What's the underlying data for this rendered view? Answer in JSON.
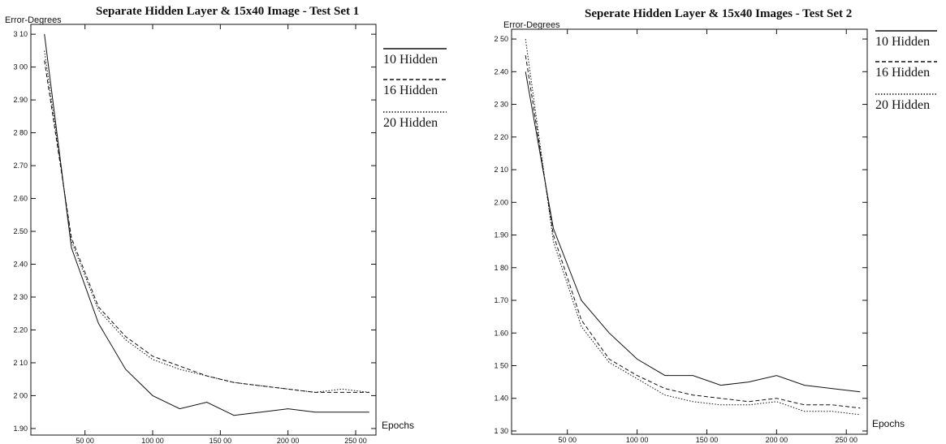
{
  "chart_data": [
    {
      "type": "line",
      "title": "Separate Hidden Layer & 15x40 Image - Test Set 1",
      "ylabel": "Error-Degrees",
      "xlabel": "Epochs",
      "xlim": [
        10,
        265
      ],
      "ylim": [
        1.88,
        3.13
      ],
      "xticks": [
        50,
        100,
        150,
        200,
        250
      ],
      "xtick_labels": [
        "50 00",
        "100 00",
        "150 00",
        "200 00",
        "250 00"
      ],
      "yticks": [
        1.9,
        2.0,
        2.1,
        2.2,
        2.3,
        2.4,
        2.5,
        2.6,
        2.7,
        2.8,
        2.9,
        3.0,
        3.1
      ],
      "ytick_labels": [
        "1.90",
        "2 00",
        "2 10",
        "2.20",
        "2 30",
        "2.40",
        "2.50",
        "2.60",
        "2.70",
        "2 80",
        "2.90",
        "3 00",
        "3 10"
      ],
      "legend_position": "right",
      "series": [
        {
          "name": "10 Hidden",
          "dash": "solid",
          "x": [
            20,
            40,
            60,
            80,
            100,
            120,
            140,
            160,
            180,
            200,
            220,
            240,
            260
          ],
          "y": [
            3.1,
            2.45,
            2.22,
            2.08,
            2.0,
            1.96,
            1.98,
            1.94,
            1.95,
            1.96,
            1.95,
            1.95,
            1.95
          ]
        },
        {
          "name": "16 Hidden",
          "dash": "dashed",
          "x": [
            20,
            40,
            60,
            80,
            100,
            120,
            140,
            160,
            180,
            200,
            220,
            240,
            260
          ],
          "y": [
            3.02,
            2.48,
            2.27,
            2.18,
            2.12,
            2.09,
            2.06,
            2.04,
            2.03,
            2.02,
            2.01,
            2.01,
            2.01
          ]
        },
        {
          "name": "20 Hidden",
          "dash": "dotted",
          "x": [
            20,
            40,
            60,
            80,
            100,
            120,
            140,
            160,
            180,
            200,
            220,
            240,
            260
          ],
          "y": [
            3.05,
            2.47,
            2.26,
            2.17,
            2.11,
            2.08,
            2.06,
            2.04,
            2.03,
            2.02,
            2.01,
            2.02,
            2.01
          ]
        }
      ]
    },
    {
      "type": "line",
      "title": "Seperate Hidden Layer & 15x40 Images - Test Set 2",
      "ylabel": "Error-Degrees",
      "xlabel": "Epochs",
      "xlim": [
        10,
        265
      ],
      "ylim": [
        1.29,
        2.53
      ],
      "xticks": [
        50,
        100,
        150,
        200,
        250
      ],
      "xtick_labels": [
        "50 00",
        "100 00",
        "150 00",
        "200 00",
        "250 00"
      ],
      "yticks": [
        1.3,
        1.4,
        1.5,
        1.6,
        1.7,
        1.8,
        1.9,
        2.0,
        2.1,
        2.2,
        2.3,
        2.4,
        2.5
      ],
      "ytick_labels": [
        "1 30",
        "1.40",
        "1 50",
        "1.60",
        "1.70",
        "1 80",
        "1.90",
        "2.00",
        "2 10",
        "2 20",
        "2 30",
        "2.40",
        "2 50"
      ],
      "legend_position": "right",
      "series": [
        {
          "name": "10 Hidden",
          "dash": "solid",
          "x": [
            20,
            40,
            60,
            80,
            100,
            120,
            140,
            160,
            180,
            200,
            220,
            240,
            260
          ],
          "y": [
            2.4,
            1.92,
            1.7,
            1.6,
            1.52,
            1.47,
            1.47,
            1.44,
            1.45,
            1.47,
            1.44,
            1.43,
            1.42
          ]
        },
        {
          "name": "16 Hidden",
          "dash": "dashed",
          "x": [
            20,
            40,
            60,
            80,
            100,
            120,
            140,
            160,
            180,
            200,
            220,
            240,
            260
          ],
          "y": [
            2.45,
            1.9,
            1.64,
            1.52,
            1.47,
            1.43,
            1.41,
            1.4,
            1.39,
            1.4,
            1.38,
            1.38,
            1.37
          ]
        },
        {
          "name": "20 Hidden",
          "dash": "dotted",
          "x": [
            20,
            40,
            60,
            80,
            100,
            120,
            140,
            160,
            180,
            200,
            220,
            240,
            260
          ],
          "y": [
            2.5,
            1.88,
            1.62,
            1.51,
            1.46,
            1.41,
            1.39,
            1.38,
            1.38,
            1.39,
            1.36,
            1.36,
            1.35
          ]
        }
      ]
    }
  ]
}
